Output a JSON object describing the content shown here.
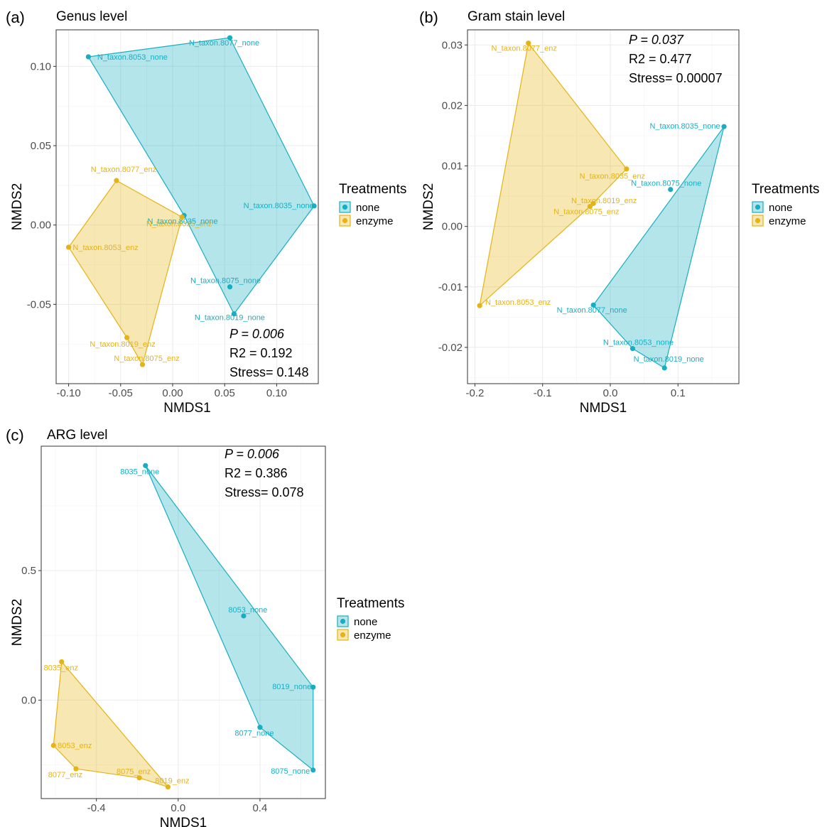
{
  "colors": {
    "none": "#17aec2",
    "enzyme": "#e6b312"
  },
  "legend": {
    "title": "Treatments",
    "items": [
      {
        "key": "none",
        "label": "none"
      },
      {
        "key": "enzyme",
        "label": "enzyme"
      }
    ]
  },
  "chart_data": [
    {
      "type": "scatter",
      "letter": "(a)",
      "title": "Genus level",
      "xlabel": "NMDS1",
      "ylabel": "NMDS2",
      "xlim": [
        -0.112,
        0.14
      ],
      "ylim": [
        -0.1,
        0.123
      ],
      "xticks": [
        {
          "v": -0.1,
          "t": "-0.10"
        },
        {
          "v": -0.05,
          "t": "-0.05"
        },
        {
          "v": 0,
          "t": "0.00"
        },
        {
          "v": 0.05,
          "t": "0.05"
        },
        {
          "v": 0.1,
          "t": "0.10"
        }
      ],
      "yticks": [
        {
          "v": -0.05,
          "t": "-0.05"
        },
        {
          "v": 0,
          "t": "0.00"
        },
        {
          "v": 0.05,
          "t": "0.05"
        },
        {
          "v": 0.1,
          "t": "0.10"
        }
      ],
      "stats": {
        "p": "P = 0.006",
        "r2": "R2 = 0.192",
        "stress": "Stress= 0.148"
      },
      "series": [
        {
          "group": "none",
          "points": [
            {
              "label": "N_taxon.8053_none",
              "x": -0.081,
              "y": 0.106
            },
            {
              "label": "N_taxon.8077_none",
              "x": 0.055,
              "y": 0.118
            },
            {
              "label": "N_taxon.8035_none",
              "x": 0.136,
              "y": 0.012
            },
            {
              "label": "N_taxon.8075_none",
              "x": 0.055,
              "y": -0.039
            },
            {
              "label": "N_taxon.8019_none",
              "x": 0.059,
              "y": -0.056
            },
            {
              "label": "N_taxon.8035_none",
              "x": 0.011,
              "y": 0.006
            }
          ],
          "hull": [
            0,
            1,
            2,
            4,
            5
          ]
        },
        {
          "group": "enzyme",
          "points": [
            {
              "label": "N_taxon.8077_enz",
              "x": -0.054,
              "y": 0.028
            },
            {
              "label": "N_taxon.8053_enz",
              "x": -0.1,
              "y": -0.014
            },
            {
              "label": "N_taxon.8019_enz",
              "x": -0.044,
              "y": -0.071
            },
            {
              "label": "N_taxon.8075_enz",
              "x": -0.029,
              "y": -0.088
            },
            {
              "label": "N_taxon.8035_enz",
              "x": 0.009,
              "y": 0.005
            }
          ],
          "hull": [
            0,
            4,
            3,
            2,
            1
          ]
        }
      ]
    },
    {
      "type": "scatter",
      "letter": "(b)",
      "title": "Gram stain level",
      "xlabel": "NMDS1",
      "ylabel": "NMDS2",
      "xlim": [
        -0.211,
        0.19
      ],
      "ylim": [
        -0.026,
        0.0325
      ],
      "xticks": [
        {
          "v": -0.2,
          "t": "-0.2"
        },
        {
          "v": -0.1,
          "t": "-0.1"
        },
        {
          "v": 0,
          "t": "0.0"
        },
        {
          "v": 0.1,
          "t": "0.1"
        }
      ],
      "yticks": [
        {
          "v": -0.02,
          "t": "-0.02"
        },
        {
          "v": -0.01,
          "t": "-0.01"
        },
        {
          "v": 0,
          "t": "0.00"
        },
        {
          "v": 0.01,
          "t": "0.01"
        },
        {
          "v": 0.02,
          "t": "0.02"
        },
        {
          "v": 0.03,
          "t": "0.03"
        }
      ],
      "stats": {
        "p": "P = 0.037",
        "r2": "R2 = 0.477",
        "stress": "Stress= 0.00007"
      },
      "series": [
        {
          "group": "none",
          "points": [
            {
              "label": "N_taxon.8035_none",
              "x": 0.168,
              "y": 0.0165
            },
            {
              "label": "N_taxon.8075_none",
              "x": 0.089,
              "y": 0.0061
            },
            {
              "label": "N_taxon.8077_none",
              "x": -0.025,
              "y": -0.013
            },
            {
              "label": "N_taxon.8053_none",
              "x": 0.033,
              "y": -0.0202
            },
            {
              "label": "N_taxon.8019_none",
              "x": 0.08,
              "y": -0.0234
            }
          ],
          "hull": [
            0,
            4,
            3,
            2
          ]
        },
        {
          "group": "enzyme",
          "points": [
            {
              "label": "N_taxon.8077_enz",
              "x": -0.121,
              "y": 0.0303
            },
            {
              "label": "N_taxon.8035_enz",
              "x": 0.024,
              "y": 0.0095
            },
            {
              "label": "N_taxon.8019_enz",
              "x": -0.025,
              "y": 0.0038
            },
            {
              "label": "N_taxon.8075_enz",
              "x": -0.03,
              "y": 0.0033
            },
            {
              "label": "N_taxon.8053_enz",
              "x": -0.193,
              "y": -0.0131
            }
          ],
          "hull": [
            0,
            1,
            3,
            4
          ]
        }
      ]
    },
    {
      "type": "scatter",
      "letter": "(c)",
      "title": "ARG level",
      "xlabel": "NMDS1",
      "ylabel": "NMDS2",
      "xlim": [
        -0.67,
        0.72
      ],
      "ylim": [
        -0.38,
        0.98
      ],
      "xticks": [
        {
          "v": -0.4,
          "t": "-0.4"
        },
        {
          "v": 0,
          "t": "0.0"
        },
        {
          "v": 0.4,
          "t": "0.4"
        }
      ],
      "yticks": [
        {
          "v": 0,
          "t": "0.0"
        },
        {
          "v": 0.5,
          "t": "0.5"
        }
      ],
      "stats": {
        "p": "P = 0.006",
        "r2": "R2 = 0.386",
        "stress": "Stress= 0.078"
      },
      "series": [
        {
          "group": "none",
          "points": [
            {
              "label": "8035_none",
              "x": -0.16,
              "y": 0.905
            },
            {
              "label": "8053_none",
              "x": 0.32,
              "y": 0.325
            },
            {
              "label": "8019_none",
              "x": 0.66,
              "y": 0.05
            },
            {
              "label": "8077_none",
              "x": 0.4,
              "y": -0.105
            },
            {
              "label": "8075_none",
              "x": 0.66,
              "y": -0.27
            }
          ],
          "hull": [
            0,
            2,
            4,
            3
          ]
        },
        {
          "group": "enzyme",
          "points": [
            {
              "label": "8035_enz",
              "x": -0.57,
              "y": 0.148
            },
            {
              "label": "8053_enz",
              "x": -0.61,
              "y": -0.175
            },
            {
              "label": "8077_enz",
              "x": -0.5,
              "y": -0.265
            },
            {
              "label": "8075_enz",
              "x": -0.19,
              "y": -0.3
            },
            {
              "label": "8019_enz",
              "x": -0.05,
              "y": -0.335
            }
          ],
          "hull": [
            0,
            4,
            3,
            2,
            1
          ]
        }
      ]
    }
  ]
}
